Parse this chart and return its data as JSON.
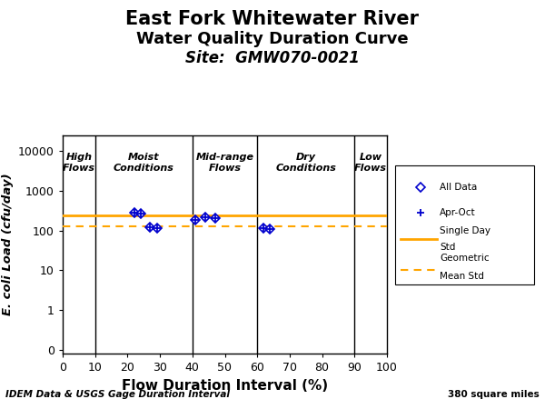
{
  "title_line1": "East Fork Whitewater River",
  "title_line2": "Water Quality Duration Curve",
  "title_line3": "Site:  GMW070-0021",
  "xlabel": "Flow Duration Interval (%)",
  "ylabel": "E. coli Load (cfu/day)",
  "footer_left": "IDEM Data & USGS Gage Duration Interval",
  "footer_right": "380 square miles",
  "all_data_x": [
    22,
    24,
    27,
    29,
    41,
    44,
    47,
    62,
    64
  ],
  "all_data_y": [
    280,
    260,
    120,
    115,
    185,
    215,
    200,
    115,
    107
  ],
  "apr_oct_x": [
    22,
    24,
    27,
    29,
    41,
    44,
    47,
    62,
    64
  ],
  "apr_oct_y": [
    280,
    260,
    120,
    115,
    185,
    215,
    200,
    115,
    107
  ],
  "single_day_std": 235,
  "geo_mean_std": 126,
  "single_day_color": "#FFA500",
  "geo_mean_color": "#FFA500",
  "data_color": "#0000CD",
  "vertical_lines": [
    10,
    40,
    60,
    90
  ],
  "zone_labels": [
    {
      "label": "High\nFlows",
      "x": 5
    },
    {
      "label": "Moist\nConditions",
      "x": 25
    },
    {
      "label": "Mid-range\nFlows",
      "x": 50
    },
    {
      "label": "Dry\nConditions",
      "x": 75
    },
    {
      "label": "Low\nFlows",
      "x": 95
    }
  ],
  "yticks": [
    0.1,
    1,
    10,
    100,
    1000,
    10000
  ],
  "ytick_labels": [
    "0",
    "1",
    "10",
    "100",
    "1000",
    "10000"
  ],
  "xticks": [
    0,
    10,
    20,
    30,
    40,
    50,
    60,
    70,
    80,
    90,
    100
  ]
}
